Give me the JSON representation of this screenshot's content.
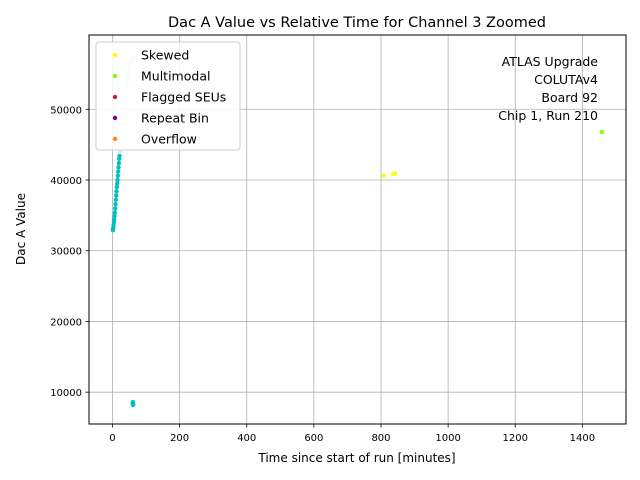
{
  "chart_data": {
    "type": "scatter",
    "title": "Dac A Value vs Relative Time for Channel 3 Zoomed",
    "xlabel": "Time since start of run [minutes]",
    "ylabel": "Dac A Value",
    "xlim": [
      -70,
      1530
    ],
    "ylim": [
      5500,
      60500
    ],
    "xticks": [
      0,
      200,
      400,
      600,
      800,
      1000,
      1200,
      1400
    ],
    "yticks": [
      10000,
      20000,
      30000,
      40000,
      50000
    ],
    "grid": true,
    "legend_position": "top-left",
    "legend": [
      {
        "label": "Skewed",
        "color": "#ffff00"
      },
      {
        "label": "Multimodal",
        "color": "#7fff00"
      },
      {
        "label": "Flagged SEUs",
        "color": "#dc143c"
      },
      {
        "label": "Repeat Bin",
        "color": "#800080"
      },
      {
        "label": "Overflow",
        "color": "#ff8c00"
      }
    ],
    "annotation": [
      "ATLAS Upgrade",
      "COLUTAv4",
      "Board 92",
      "Chip 1, Run 210"
    ],
    "series": [
      {
        "name": "Skewed",
        "color": "#ffff00",
        "points": [
          [
            808,
            40600
          ],
          [
            836,
            40900
          ],
          [
            842,
            40950
          ]
        ]
      },
      {
        "name": "Multimodal",
        "color": "#7fff00",
        "points": [
          [
            1458,
            46800
          ]
        ]
      },
      {
        "color": "#00bfbf",
        "points": [
          [
            1,
            32900
          ],
          [
            2,
            33200
          ],
          [
            3,
            33600
          ],
          [
            4,
            34000
          ],
          [
            5,
            34400
          ],
          [
            6,
            34900
          ],
          [
            7,
            35400
          ],
          [
            8,
            36000
          ],
          [
            9,
            36600
          ],
          [
            10,
            37200
          ],
          [
            11,
            37800
          ],
          [
            12,
            38400
          ],
          [
            13,
            39000
          ],
          [
            14,
            39500
          ],
          [
            15,
            40000
          ],
          [
            16,
            40600
          ],
          [
            17,
            41200
          ],
          [
            18,
            41800
          ],
          [
            19,
            42400
          ],
          [
            20,
            43000
          ],
          [
            21,
            43400
          ],
          [
            60,
            8500
          ],
          [
            61,
            8200
          ],
          [
            62,
            8300
          ],
          [
            61,
            8600
          ]
        ]
      },
      {
        "color": "#c8f0ee",
        "points": [
          [
            22,
            44000
          ],
          [
            24,
            45000
          ],
          [
            26,
            46000
          ],
          [
            28,
            47000
          ],
          [
            30,
            48000
          ],
          [
            32,
            49000
          ],
          [
            34,
            50000
          ],
          [
            36,
            51000
          ],
          [
            38,
            51800
          ],
          [
            40,
            52600
          ],
          [
            42,
            53300
          ],
          [
            44,
            54000
          ],
          [
            46,
            54700
          ],
          [
            48,
            55300
          ],
          [
            50,
            55900
          ],
          [
            52,
            56400
          ],
          [
            55,
            56800
          ],
          [
            58,
            57100
          ],
          [
            60,
            57300
          ]
        ]
      }
    ]
  }
}
